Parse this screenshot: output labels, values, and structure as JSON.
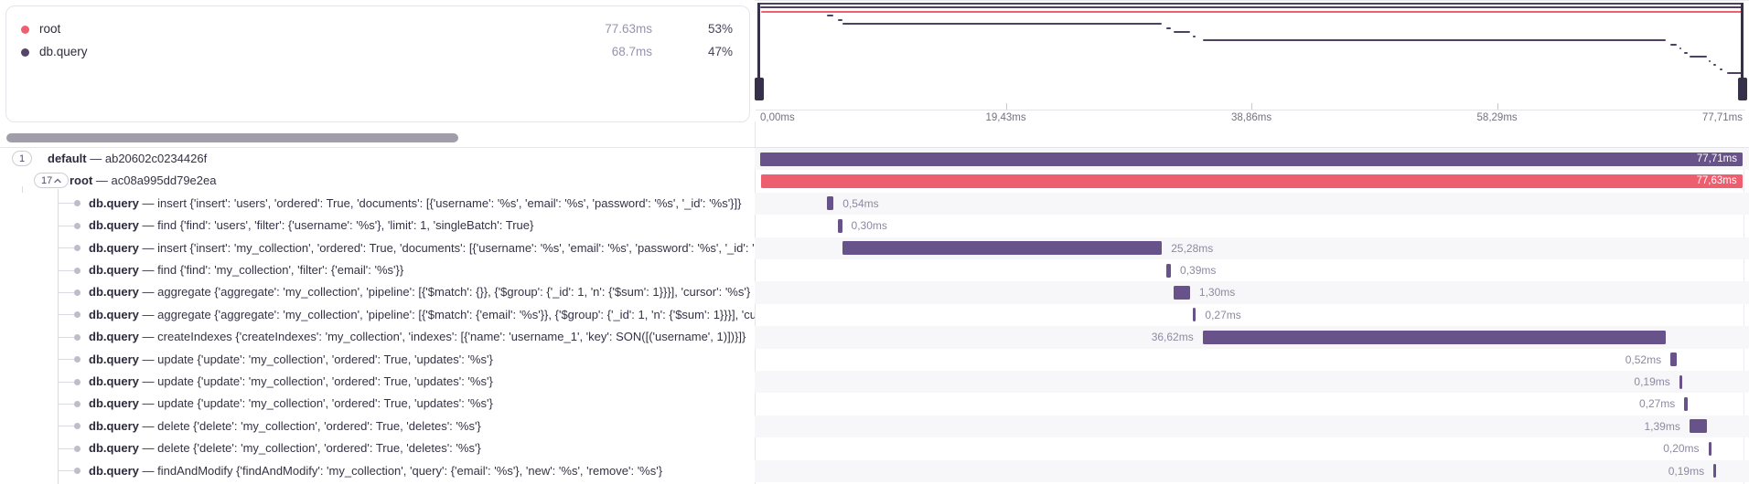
{
  "colors": {
    "purple_bar": "#67528a",
    "red_bar": "#ed5e6f",
    "minimap_purple": "#4c4162",
    "minimap_red": "#ee5f72",
    "legend_root_dot": "#ee5f72",
    "legend_dbquery_dot": "#554669",
    "row_alt_bg": "#f7f7fa"
  },
  "legend": {
    "items": [
      {
        "label": "root",
        "value": "77.63ms",
        "pct": "53%",
        "color": "#ee5f72"
      },
      {
        "label": "db.query",
        "value": "68.7ms",
        "pct": "47%",
        "color": "#554669"
      }
    ]
  },
  "timeline": {
    "total_ms": 77.71,
    "axis_ticks": [
      {
        "label": "0,00ms",
        "ms": 0,
        "align": "left"
      },
      {
        "label": "19,43ms",
        "ms": 19.43,
        "align": "center"
      },
      {
        "label": "38,86ms",
        "ms": 38.86,
        "align": "center"
      },
      {
        "label": "58,29ms",
        "ms": 58.29,
        "align": "center"
      },
      {
        "label": "77,71ms",
        "ms": 77.71,
        "align": "right"
      }
    ]
  },
  "strings": {
    "separator": "—"
  },
  "spans": [
    {
      "kind": "trace",
      "badge": "1",
      "name": "default",
      "detail": "ab20602c0234426f",
      "start_ms": 0,
      "duration_ms": 77.71,
      "duration_label": "77,71ms",
      "color": "purple"
    },
    {
      "kind": "root",
      "badge": "17",
      "badge_chevron": true,
      "name": "root",
      "detail": "ac08a995dd79e2ea",
      "start_ms": 0.05,
      "duration_ms": 77.63,
      "duration_label": "77,63ms",
      "color": "red"
    },
    {
      "kind": "span",
      "name": "db.query",
      "detail": "insert {'insert': 'users', 'ordered': True, 'documents': [{'username': '%s', 'email': '%s', 'password': '%s', '_id': '%s'}]}",
      "start_ms": 5.27,
      "duration_ms": 0.54,
      "duration_label": "0,54ms",
      "color": "purple"
    },
    {
      "kind": "span",
      "name": "db.query",
      "detail": "find {'find': 'users', 'filter': {'username': '%s'}, 'limit': 1, 'singleBatch': True}",
      "start_ms": 6.18,
      "duration_ms": 0.3,
      "duration_label": "0,30ms",
      "color": "purple"
    },
    {
      "kind": "span",
      "name": "db.query",
      "detail": "insert {'insert': 'my_collection', 'ordered': True, 'documents': [{'username': '%s', 'email': '%s', 'password': '%s', '_id': '%s'}, {'u",
      "start_ms": 6.5,
      "duration_ms": 25.28,
      "duration_label": "25,28ms",
      "color": "purple"
    },
    {
      "kind": "span",
      "name": "db.query",
      "detail": "find {'find': 'my_collection', 'filter': {'email': '%s'}}",
      "start_ms": 32.1,
      "duration_ms": 0.39,
      "duration_label": "0,39ms",
      "color": "purple"
    },
    {
      "kind": "span",
      "name": "db.query",
      "detail": "aggregate {'aggregate': 'my_collection', 'pipeline': [{'$match': {}}, {'$group': {'_id': 1, 'n': {'$sum': 1}}}], 'cursor': '%s'}",
      "start_ms": 32.7,
      "duration_ms": 1.3,
      "duration_label": "1,30ms",
      "color": "purple"
    },
    {
      "kind": "span",
      "name": "db.query",
      "detail": "aggregate {'aggregate': 'my_collection', 'pipeline': [{'$match': {'email': '%s'}}, {'$group': {'_id': 1, 'n': {'$sum': 1}}}], 'cursor': '",
      "start_ms": 34.2,
      "duration_ms": 0.27,
      "duration_label": "0,27ms",
      "color": "purple"
    },
    {
      "kind": "span",
      "name": "db.query",
      "detail": "createIndexes {'createIndexes': 'my_collection', 'indexes': [{'name': 'username_1', 'key': SON([('username', 1)])}]}",
      "start_ms": 35.0,
      "duration_ms": 36.62,
      "duration_label": "36,62ms",
      "color": "purple"
    },
    {
      "kind": "span",
      "name": "db.query",
      "detail": "update {'update': 'my_collection', 'ordered': True, 'updates': '%s'}",
      "start_ms": 72.0,
      "duration_ms": 0.52,
      "duration_label": "0,52ms",
      "color": "purple"
    },
    {
      "kind": "span",
      "name": "db.query",
      "detail": "update {'update': 'my_collection', 'ordered': True, 'updates': '%s'}",
      "start_ms": 72.7,
      "duration_ms": 0.19,
      "duration_label": "0,19ms",
      "color": "purple"
    },
    {
      "kind": "span",
      "name": "db.query",
      "detail": "update {'update': 'my_collection', 'ordered': True, 'updates': '%s'}",
      "start_ms": 73.1,
      "duration_ms": 0.27,
      "duration_label": "0,27ms",
      "color": "purple"
    },
    {
      "kind": "span",
      "name": "db.query",
      "detail": "delete {'delete': 'my_collection', 'ordered': True, 'deletes': '%s'}",
      "start_ms": 73.5,
      "duration_ms": 1.39,
      "duration_label": "1,39ms",
      "color": "purple"
    },
    {
      "kind": "span",
      "name": "db.query",
      "detail": "delete {'delete': 'my_collection', 'ordered': True, 'deletes': '%s'}",
      "start_ms": 75.0,
      "duration_ms": 0.2,
      "duration_label": "0,20ms",
      "color": "purple"
    },
    {
      "kind": "span",
      "name": "db.query",
      "detail": "findAndModify {'findAndModify': 'my_collection', 'query': {'email': '%s'}, 'new': '%s', 'remove': '%s'}",
      "start_ms": 75.4,
      "duration_ms": 0.19,
      "duration_label": "0,19ms",
      "color": "purple"
    }
  ],
  "minimap_extra_spans": [
    {
      "start_ms": 75.9,
      "duration_ms": 0.25
    },
    {
      "start_ms": 76.5,
      "duration_ms": 1.2
    }
  ]
}
